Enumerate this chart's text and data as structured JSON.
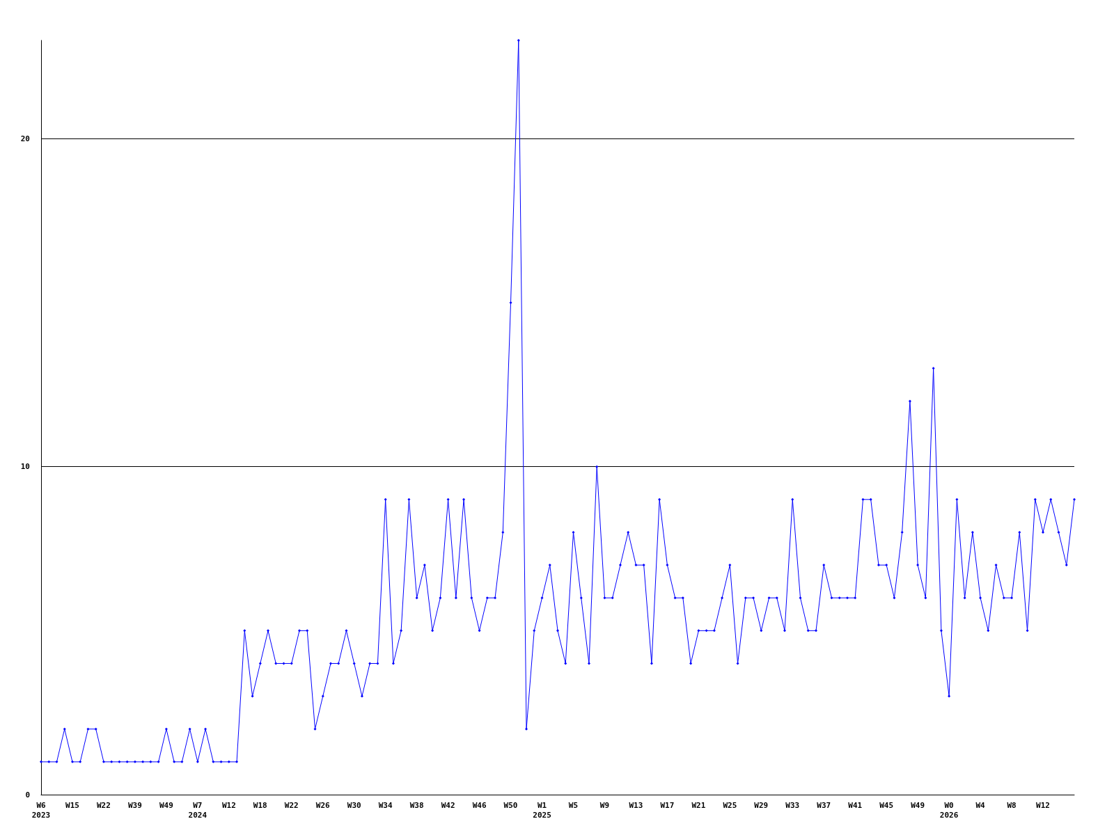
{
  "chart_data": {
    "type": "line",
    "categories": [
      "W6\n2023",
      null,
      null,
      null,
      "W15",
      null,
      null,
      null,
      "W22",
      null,
      null,
      null,
      "W39",
      null,
      null,
      null,
      "W49",
      null,
      null,
      null,
      "W7\n2024",
      null,
      null,
      null,
      "W12",
      null,
      null,
      null,
      "W18",
      null,
      null,
      null,
      "W22",
      null,
      null,
      null,
      "W26",
      null,
      null,
      null,
      "W30",
      null,
      null,
      null,
      "W34",
      null,
      null,
      null,
      "W38",
      null,
      null,
      null,
      "W42",
      null,
      null,
      null,
      "W46",
      null,
      null,
      null,
      "W50",
      null,
      null,
      null,
      "W1\n2025",
      null,
      null,
      null,
      "W5",
      null,
      null,
      null,
      "W9",
      null,
      null,
      null,
      "W13",
      null,
      null,
      null,
      "W17",
      null,
      null,
      null,
      "W21",
      null,
      null,
      null,
      "W25",
      null,
      null,
      null,
      "W29",
      null,
      null,
      null,
      "W33",
      null,
      null,
      null,
      "W37",
      null,
      null,
      null,
      "W41",
      null,
      null,
      null,
      "W45",
      null,
      null,
      null,
      "W49",
      null,
      null,
      null,
      "W0\n2026",
      null,
      null,
      null,
      "W4",
      null,
      null,
      null,
      "W8",
      null,
      null,
      null,
      "W12",
      null,
      null,
      null,
      null
    ],
    "values": [
      1,
      1,
      1,
      2,
      1,
      1,
      2,
      2,
      1,
      1,
      1,
      1,
      1,
      1,
      1,
      1,
      2,
      1,
      1,
      2,
      1,
      2,
      1,
      1,
      1,
      1,
      5,
      3,
      4,
      5,
      4,
      4,
      4,
      5,
      5,
      2,
      3,
      4,
      4,
      5,
      4,
      3,
      4,
      4,
      9,
      4,
      5,
      9,
      6,
      7,
      5,
      6,
      9,
      6,
      9,
      6,
      5,
      6,
      6,
      8,
      15,
      23,
      2,
      5,
      6,
      7,
      5,
      4,
      8,
      6,
      4,
      10,
      6,
      6,
      7,
      8,
      7,
      7,
      4,
      9,
      7,
      6,
      6,
      4,
      5,
      5,
      5,
      6,
      7,
      4,
      6,
      6,
      5,
      6,
      6,
      5,
      9,
      6,
      5,
      5,
      7,
      6,
      6,
      6,
      6,
      9,
      9,
      7,
      7,
      6,
      8,
      12,
      7,
      6,
      13,
      5,
      3,
      9,
      6,
      8,
      6,
      5,
      7,
      6,
      6,
      8,
      5,
      9,
      8,
      9,
      8,
      7,
      9
    ],
    "color": "#0000ff",
    "ylim": [
      0,
      23
    ],
    "yticks": [
      0,
      10,
      20
    ],
    "grid": "y",
    "marker": "diamond",
    "line_style": "solid"
  }
}
